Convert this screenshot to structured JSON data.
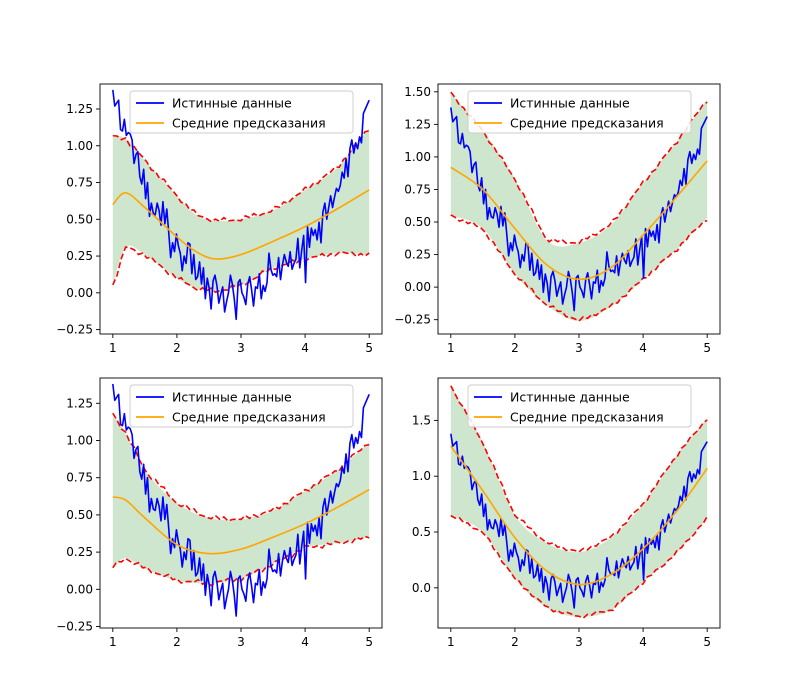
{
  "chart_data": [
    {
      "type": "line",
      "xlim": [
        0.8,
        5.2
      ],
      "ylim": [
        -0.28,
        1.42
      ],
      "xticks": [
        1,
        2,
        3,
        4,
        5
      ],
      "yticks": [
        -0.25,
        0.0,
        0.25,
        0.5,
        0.75,
        1.0,
        1.25
      ],
      "ytick_labels": [
        "−0.25",
        "0.00",
        "0.25",
        "0.50",
        "0.75",
        "1.00",
        "1.25"
      ],
      "legend_position": "top-right",
      "series": [
        {
          "name": "Истинные данные",
          "color": "#0000ff",
          "style": "solid"
        },
        {
          "name": "Средние предсказания",
          "color": "#ffa500",
          "style": "solid"
        }
      ],
      "mean_x": [
        1,
        1.2,
        1.5,
        2,
        2.3,
        2.6,
        3,
        3.5,
        4,
        4.5,
        5
      ],
      "mean_y": [
        0.6,
        0.68,
        0.58,
        0.38,
        0.28,
        0.23,
        0.26,
        0.35,
        0.45,
        0.57,
        0.7
      ],
      "upper_y": [
        1.06,
        1.05,
        0.9,
        0.66,
        0.53,
        0.49,
        0.5,
        0.56,
        0.7,
        0.85,
        1.12
      ],
      "lower_y": [
        0.05,
        0.31,
        0.26,
        0.1,
        0.03,
        0.01,
        0.05,
        0.17,
        0.23,
        0.27,
        0.26
      ],
      "band_color": "#228b22",
      "bound_color": "#ff0000"
    },
    {
      "type": "line",
      "xlim": [
        0.8,
        5.2
      ],
      "ylim": [
        -0.36,
        1.56
      ],
      "xticks": [
        1,
        2,
        3,
        4,
        5
      ],
      "yticks": [
        -0.25,
        0.0,
        0.25,
        0.5,
        0.75,
        1.0,
        1.25,
        1.5
      ],
      "ytick_labels": [
        "−0.25",
        "0.00",
        "0.25",
        "0.50",
        "0.75",
        "1.00",
        "1.25",
        "1.50"
      ],
      "legend_position": "top-right",
      "series": [
        {
          "name": "Истинные данные",
          "color": "#0000ff",
          "style": "solid"
        },
        {
          "name": "Средние предсказания",
          "color": "#ffa500",
          "style": "solid"
        }
      ],
      "mean_x": [
        1,
        1.5,
        2,
        2.5,
        3,
        3.5,
        4,
        4.5,
        5
      ],
      "mean_y": [
        0.92,
        0.75,
        0.45,
        0.17,
        0.06,
        0.15,
        0.4,
        0.68,
        0.97
      ],
      "upper_y": [
        1.49,
        1.2,
        0.83,
        0.36,
        0.34,
        0.48,
        0.8,
        1.1,
        1.44
      ],
      "lower_y": [
        0.55,
        0.45,
        0.1,
        -0.14,
        -0.26,
        -0.15,
        0.06,
        0.28,
        0.53
      ],
      "band_color": "#228b22",
      "bound_color": "#ff0000"
    },
    {
      "type": "line",
      "xlim": [
        0.8,
        5.2
      ],
      "ylim": [
        -0.26,
        1.42
      ],
      "xticks": [
        1,
        2,
        3,
        4,
        5
      ],
      "yticks": [
        -0.25,
        0.0,
        0.25,
        0.5,
        0.75,
        1.0,
        1.25
      ],
      "ytick_labels": [
        "−0.25",
        "0.00",
        "0.25",
        "0.50",
        "0.75",
        "1.00",
        "1.25"
      ],
      "legend_position": "top-right",
      "series": [
        {
          "name": "Истинные данные",
          "color": "#0000ff",
          "style": "solid"
        },
        {
          "name": "Средние предсказания",
          "color": "#ffa500",
          "style": "solid"
        }
      ],
      "mean_x": [
        1,
        1.2,
        1.5,
        2,
        2.5,
        3,
        3.5,
        4,
        4.5,
        5
      ],
      "mean_y": [
        0.62,
        0.6,
        0.48,
        0.3,
        0.24,
        0.27,
        0.35,
        0.44,
        0.55,
        0.67
      ],
      "upper_y": [
        1.18,
        1.05,
        0.8,
        0.58,
        0.48,
        0.47,
        0.53,
        0.66,
        0.8,
        0.99
      ],
      "lower_y": [
        0.15,
        0.21,
        0.14,
        0.06,
        0.04,
        0.07,
        0.17,
        0.28,
        0.31,
        0.35
      ],
      "band_color": "#228b22",
      "bound_color": "#ff0000"
    },
    {
      "type": "line",
      "xlim": [
        0.8,
        5.2
      ],
      "ylim": [
        -0.36,
        1.88
      ],
      "xticks": [
        1,
        2,
        3,
        4,
        5
      ],
      "yticks": [
        0.0,
        0.5,
        1.0,
        1.5
      ],
      "ytick_labels": [
        "0.0",
        "0.5",
        "1.0",
        "1.5"
      ],
      "legend_position": "top-right",
      "series": [
        {
          "name": "Истинные данные",
          "color": "#0000ff",
          "style": "solid"
        },
        {
          "name": "Средние предсказания",
          "color": "#ffa500",
          "style": "solid"
        }
      ],
      "mean_x": [
        1,
        1.5,
        2,
        2.5,
        3,
        3.5,
        4,
        4.5,
        5
      ],
      "mean_y": [
        1.27,
        0.87,
        0.45,
        0.15,
        0.03,
        0.12,
        0.35,
        0.67,
        1.07
      ],
      "upper_y": [
        1.81,
        1.3,
        0.65,
        0.4,
        0.32,
        0.45,
        0.75,
        1.17,
        1.52
      ],
      "lower_y": [
        0.65,
        0.5,
        0.08,
        -0.18,
        -0.26,
        -0.2,
        0.05,
        0.3,
        0.62
      ],
      "band_color": "#228b22",
      "bound_color": "#ff0000"
    }
  ],
  "true_data": {
    "x_start": 1,
    "x_end": 5,
    "y": [
      1.38,
      1.27,
      1.29,
      1.31,
      1.11,
      1.1,
      1.18,
      1.07,
      1.09,
      1.08,
      1.04,
      0.88,
      0.94,
      0.96,
      0.79,
      0.74,
      0.84,
      0.64,
      0.75,
      0.52,
      0.61,
      0.54,
      0.53,
      0.61,
      0.56,
      0.46,
      0.62,
      0.47,
      0.57,
      0.41,
      0.24,
      0.34,
      0.28,
      0.4,
      0.32,
      0.27,
      0.15,
      0.25,
      0.2,
      0.34,
      0.33,
      0.13,
      0.26,
      0.09,
      0.11,
      0.21,
      0.06,
      0.17,
      -0.04,
      0.1,
      0.03,
      -0.11,
      0.08,
      0.12,
      0.05,
      -0.07,
      -0.01,
      0.04,
      -0.13,
      -0.06,
      0.0,
      0.12,
      0.06,
      -0.04,
      -0.18,
      0.07,
      0.09,
      0.0,
      -0.03,
      -0.08,
      0.06,
      0.11,
      0.02,
      -0.09,
      0.04,
      0.03,
      0.13,
      -0.04,
      0.05,
      0.01,
      0.07,
      0.27,
      0.16,
      0.12,
      0.13,
      0.11,
      0.24,
      0.09,
      0.19,
      0.26,
      0.21,
      0.18,
      0.28,
      0.16,
      0.2,
      0.23,
      0.37,
      0.17,
      0.29,
      0.39,
      0.07,
      0.45,
      0.31,
      0.44,
      0.39,
      0.43,
      0.36,
      0.48,
      0.34,
      0.55,
      0.61,
      0.5,
      0.58,
      0.66,
      0.58,
      0.65,
      0.71,
      0.69,
      0.73,
      0.82,
      0.78,
      0.91,
      0.79,
      0.98,
      1.04,
      0.95,
      1.02,
      0.98,
      1.06,
      1.02,
      1.22,
      1.25,
      1.28,
      1.31
    ]
  }
}
